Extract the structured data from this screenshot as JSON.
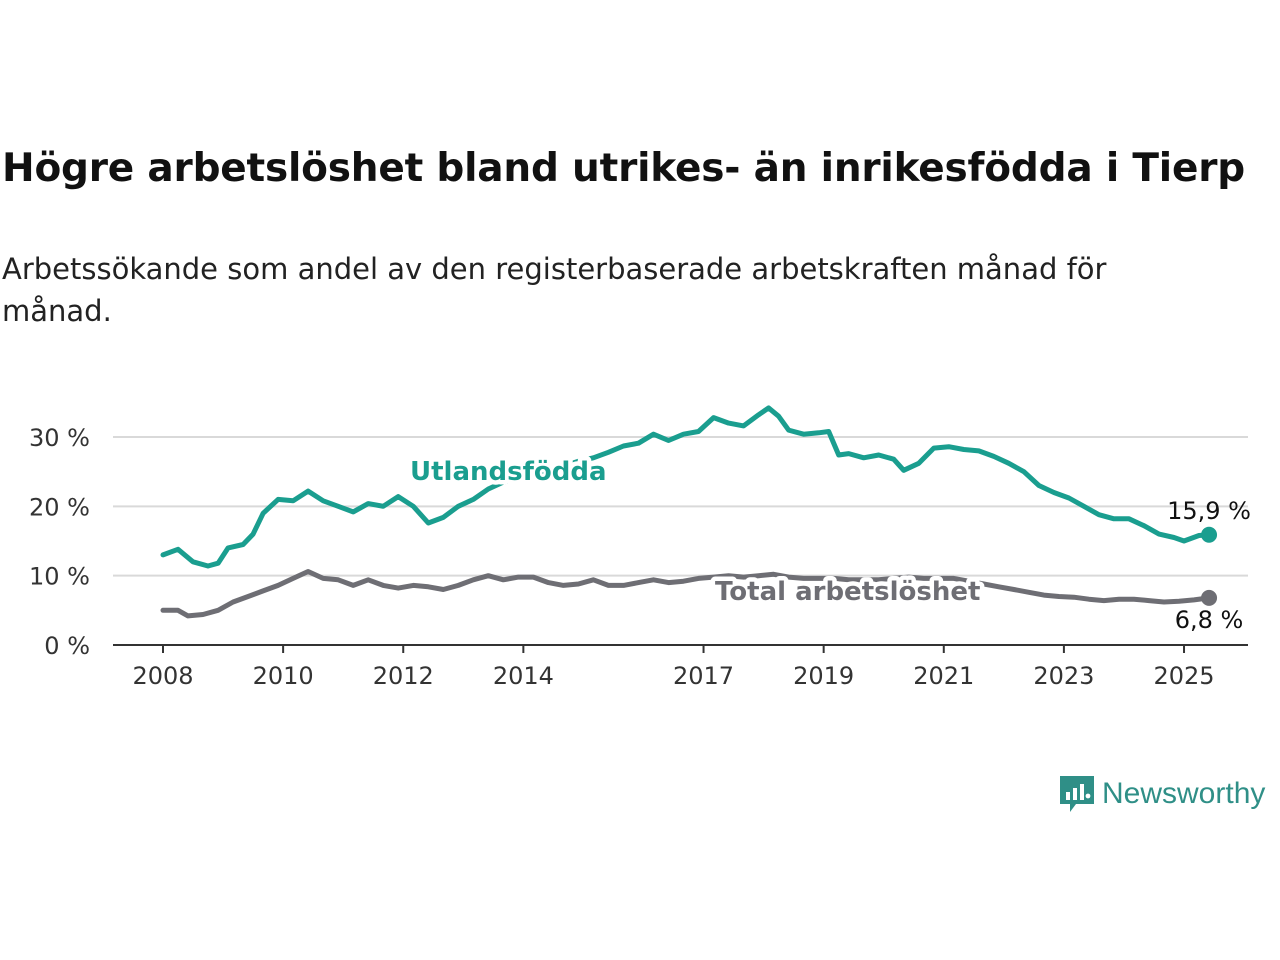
{
  "title": "Högre arbetslöshet bland utrikes- än inrikesfödda i Tierp",
  "subtitle": "Arbetssökande som andel av den registerbaserade arbetskraften månad för månad.",
  "brand": "Newsworthy",
  "colors": {
    "foreign": "#1a9e8f",
    "total": "#6e6e74",
    "grid": "#d9d9d9",
    "axis": "#333333",
    "brand": "#2f8f87"
  },
  "chart_data": {
    "type": "line",
    "x_ticks": [
      "2008",
      "2010",
      "2012",
      "2014",
      "2017",
      "2019",
      "2021",
      "2023",
      "2025"
    ],
    "y_ticks": [
      "0 %",
      "10 %",
      "20 %",
      "30 %"
    ],
    "ylim": [
      0,
      30
    ],
    "series": [
      {
        "name": "Utlandsfödda",
        "color": "#1a9e8f",
        "end_label": "15,9 %",
        "points": [
          [
            "2008-01",
            13.0
          ],
          [
            "2008-04",
            13.8
          ],
          [
            "2008-07",
            12.0
          ],
          [
            "2008-10",
            11.4
          ],
          [
            "2008-12",
            11.8
          ],
          [
            "2009-02",
            14.0
          ],
          [
            "2009-05",
            14.5
          ],
          [
            "2009-07",
            16.0
          ],
          [
            "2009-09",
            19.0
          ],
          [
            "2009-12",
            21.0
          ],
          [
            "2010-03",
            20.8
          ],
          [
            "2010-06",
            22.2
          ],
          [
            "2010-09",
            20.8
          ],
          [
            "2010-12",
            20.0
          ],
          [
            "2011-03",
            19.2
          ],
          [
            "2011-06",
            20.4
          ],
          [
            "2011-09",
            20.0
          ],
          [
            "2011-12",
            21.4
          ],
          [
            "2012-03",
            20.0
          ],
          [
            "2012-06",
            17.6
          ],
          [
            "2012-09",
            18.4
          ],
          [
            "2012-12",
            20.0
          ],
          [
            "2013-03",
            21.0
          ],
          [
            "2013-06",
            22.5
          ],
          [
            "2013-09",
            23.5
          ],
          [
            "2013-12",
            24.0
          ],
          [
            "2014-03",
            24.5
          ],
          [
            "2014-06",
            25.0
          ],
          [
            "2014-09",
            25.8
          ],
          [
            "2014-12",
            26.5
          ],
          [
            "2015-03",
            27.0
          ],
          [
            "2015-06",
            27.8
          ],
          [
            "2015-09",
            28.7
          ],
          [
            "2015-12",
            29.1
          ],
          [
            "2016-03",
            30.4
          ],
          [
            "2016-06",
            29.5
          ],
          [
            "2016-09",
            30.4
          ],
          [
            "2016-12",
            30.8
          ],
          [
            "2017-03",
            32.8
          ],
          [
            "2017-06",
            32.0
          ],
          [
            "2017-09",
            31.6
          ],
          [
            "2017-12",
            33.2
          ],
          [
            "2018-02",
            34.2
          ],
          [
            "2018-04",
            33.0
          ],
          [
            "2018-06",
            31.0
          ],
          [
            "2018-09",
            30.4
          ],
          [
            "2018-12",
            30.6
          ],
          [
            "2019-02",
            30.8
          ],
          [
            "2019-04",
            27.4
          ],
          [
            "2019-06",
            27.6
          ],
          [
            "2019-09",
            27.0
          ],
          [
            "2019-12",
            27.4
          ],
          [
            "2020-03",
            26.8
          ],
          [
            "2020-05",
            25.2
          ],
          [
            "2020-08",
            26.2
          ],
          [
            "2020-11",
            28.4
          ],
          [
            "2021-02",
            28.6
          ],
          [
            "2021-05",
            28.2
          ],
          [
            "2021-08",
            28.0
          ],
          [
            "2021-11",
            27.2
          ],
          [
            "2022-02",
            26.2
          ],
          [
            "2022-05",
            25.0
          ],
          [
            "2022-08",
            23.0
          ],
          [
            "2022-11",
            22.0
          ],
          [
            "2023-02",
            21.2
          ],
          [
            "2023-05",
            20.0
          ],
          [
            "2023-08",
            18.8
          ],
          [
            "2023-11",
            18.2
          ],
          [
            "2024-02",
            18.2
          ],
          [
            "2024-05",
            17.2
          ],
          [
            "2024-08",
            16.0
          ],
          [
            "2024-11",
            15.5
          ],
          [
            "2025-01",
            15.0
          ],
          [
            "2025-04",
            15.8
          ],
          [
            "2025-06",
            15.9
          ]
        ]
      },
      {
        "name": "Total arbetslöshet",
        "color": "#6e6e74",
        "end_label": "6,8 %",
        "points": [
          [
            "2008-01",
            5.0
          ],
          [
            "2008-04",
            5.0
          ],
          [
            "2008-06",
            4.2
          ],
          [
            "2008-09",
            4.4
          ],
          [
            "2008-12",
            5.0
          ],
          [
            "2009-03",
            6.2
          ],
          [
            "2009-06",
            7.0
          ],
          [
            "2009-09",
            7.8
          ],
          [
            "2009-12",
            8.6
          ],
          [
            "2010-03",
            9.6
          ],
          [
            "2010-06",
            10.6
          ],
          [
            "2010-09",
            9.6
          ],
          [
            "2010-12",
            9.4
          ],
          [
            "2011-03",
            8.6
          ],
          [
            "2011-06",
            9.4
          ],
          [
            "2011-09",
            8.6
          ],
          [
            "2011-12",
            8.2
          ],
          [
            "2012-03",
            8.6
          ],
          [
            "2012-06",
            8.4
          ],
          [
            "2012-09",
            8.0
          ],
          [
            "2012-12",
            8.6
          ],
          [
            "2013-03",
            9.4
          ],
          [
            "2013-06",
            10.0
          ],
          [
            "2013-09",
            9.4
          ],
          [
            "2013-12",
            9.8
          ],
          [
            "2014-03",
            9.8
          ],
          [
            "2014-06",
            9.0
          ],
          [
            "2014-09",
            8.6
          ],
          [
            "2014-12",
            8.8
          ],
          [
            "2015-03",
            9.4
          ],
          [
            "2015-06",
            8.6
          ],
          [
            "2015-09",
            8.6
          ],
          [
            "2015-12",
            9.0
          ],
          [
            "2016-03",
            9.4
          ],
          [
            "2016-06",
            9.0
          ],
          [
            "2016-09",
            9.2
          ],
          [
            "2016-12",
            9.6
          ],
          [
            "2017-03",
            9.8
          ],
          [
            "2017-06",
            10.0
          ],
          [
            "2017-09",
            9.8
          ],
          [
            "2017-12",
            10.0
          ],
          [
            "2018-03",
            10.2
          ],
          [
            "2018-06",
            9.8
          ],
          [
            "2018-09",
            9.6
          ],
          [
            "2018-12",
            9.6
          ],
          [
            "2019-03",
            9.6
          ],
          [
            "2019-06",
            9.4
          ],
          [
            "2019-09",
            9.4
          ],
          [
            "2019-12",
            9.4
          ],
          [
            "2020-03",
            9.6
          ],
          [
            "2020-06",
            9.8
          ],
          [
            "2020-09",
            9.6
          ],
          [
            "2020-12",
            9.6
          ],
          [
            "2021-03",
            9.6
          ],
          [
            "2021-06",
            9.2
          ],
          [
            "2021-09",
            8.8
          ],
          [
            "2021-12",
            8.4
          ],
          [
            "2022-03",
            8.0
          ],
          [
            "2022-06",
            7.6
          ],
          [
            "2022-09",
            7.2
          ],
          [
            "2022-12",
            7.0
          ],
          [
            "2023-03",
            6.9
          ],
          [
            "2023-06",
            6.6
          ],
          [
            "2023-09",
            6.4
          ],
          [
            "2023-12",
            6.6
          ],
          [
            "2024-03",
            6.6
          ],
          [
            "2024-06",
            6.4
          ],
          [
            "2024-09",
            6.2
          ],
          [
            "2024-12",
            6.3
          ],
          [
            "2025-03",
            6.5
          ],
          [
            "2025-06",
            6.8
          ]
        ]
      }
    ]
  }
}
